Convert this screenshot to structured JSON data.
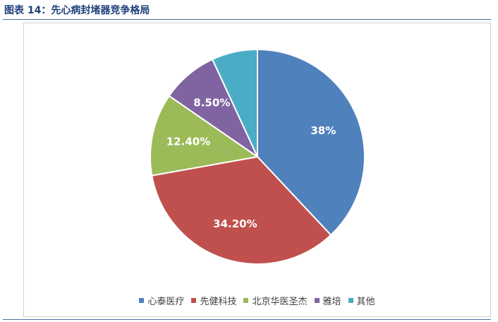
{
  "figure": {
    "title": "图表 14：先心病封堵器竞争格局"
  },
  "chart_data": {
    "type": "pie",
    "categories": [
      "心泰医疗",
      "先健科技",
      "北京华医圣杰",
      "雅培",
      "其他"
    ],
    "values": [
      38,
      34.2,
      12.4,
      8.5,
      6.9
    ],
    "data_labels": [
      "38%",
      "34.20%",
      "12.40%",
      "8.50%",
      ""
    ],
    "colors": [
      "#4f81bd",
      "#c0504d",
      "#9bbb59",
      "#8064a2",
      "#4bacc6"
    ],
    "legend_position": "bottom",
    "start_angle": "12 o'clock",
    "direction": "clockwise"
  }
}
